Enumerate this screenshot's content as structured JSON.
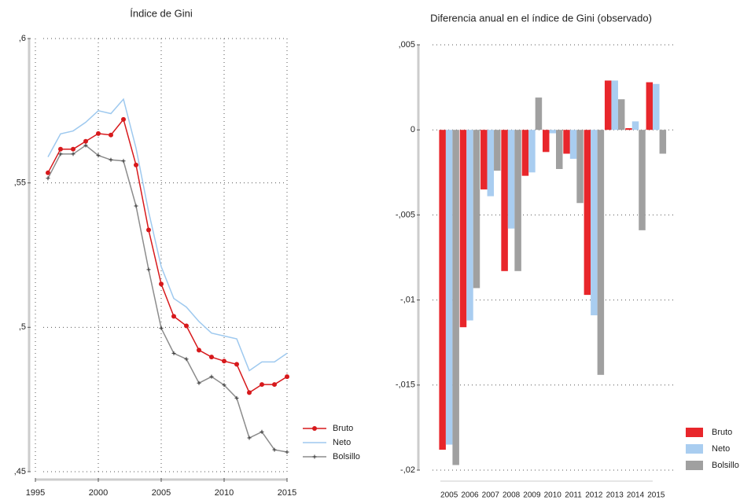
{
  "chart_data": [
    {
      "type": "line",
      "title": "Índice de Gini",
      "x": [
        1996,
        1997,
        1998,
        1999,
        2000,
        2001,
        2002,
        2003,
        2004,
        2005,
        2006,
        2007,
        2008,
        2009,
        2010,
        2011,
        2012,
        2013,
        2014,
        2015
      ],
      "series": [
        {
          "name": "Bruto",
          "color": "#d7191c",
          "marker": "circle",
          "values": [
            0.5535,
            0.5617,
            0.5617,
            0.5644,
            0.5671,
            0.5666,
            0.572,
            0.5562,
            0.5337,
            0.515,
            0.5038,
            0.5005,
            0.4921,
            0.4897,
            0.4883,
            0.4872,
            0.4774,
            0.4802,
            0.4802,
            0.4829
          ]
        },
        {
          "name": "Neto",
          "color": "#9ec9ef",
          "marker": "none",
          "values": [
            0.559,
            0.567,
            0.568,
            0.571,
            0.575,
            0.574,
            0.579,
            0.562,
            0.54,
            0.521,
            0.51,
            0.507,
            0.502,
            0.498,
            0.497,
            0.496,
            0.485,
            0.488,
            0.488,
            0.491
          ]
        },
        {
          "name": "Bolsillo",
          "color": "#8c8c8c",
          "marker": "plus",
          "values": [
            0.5516,
            0.56,
            0.56,
            0.563,
            0.5595,
            0.558,
            0.5576,
            0.542,
            0.52,
            0.4997,
            0.491,
            0.489,
            0.4807,
            0.4829,
            0.48,
            0.4755,
            0.4617,
            0.4638,
            0.4576,
            0.4568
          ]
        }
      ],
      "xlim": [
        1995,
        2015
      ],
      "xticks": [
        1995,
        2000,
        2005,
        2010,
        2015
      ],
      "ylim": [
        0.45,
        0.6
      ],
      "yticks": [
        {
          "value": 0.45,
          "label": ",45"
        },
        {
          "value": 0.5,
          "label": ",5"
        },
        {
          "value": 0.55,
          "label": ",55"
        },
        {
          "value": 0.6,
          "label": ",6"
        }
      ],
      "grid": true,
      "xgrid": true,
      "legend": "lower right"
    },
    {
      "type": "bar",
      "title": "Diferencia anual en el índice de Gini (observado)",
      "categories": [
        "2005",
        "2006",
        "2007",
        "2008",
        "2009",
        "2010",
        "2011",
        "2012",
        "2013",
        "2014",
        "2015"
      ],
      "series": [
        {
          "name": "Bruto",
          "color": "#e8262b",
          "values": [
            -0.0188,
            -0.0116,
            -0.0035,
            -0.0083,
            -0.0027,
            -0.0013,
            -0.0014,
            -0.0097,
            0.0029,
            0.0001,
            0.0028
          ]
        },
        {
          "name": "Neto",
          "color": "#a9cdf0",
          "values": [
            -0.0185,
            -0.0112,
            -0.0039,
            -0.0058,
            -0.0025,
            -0.0002,
            -0.0017,
            -0.0109,
            0.0029,
            0.0005,
            0.0027
          ]
        },
        {
          "name": "Bolsillo",
          "color": "#a0a0a0",
          "values": [
            -0.0197,
            -0.0093,
            -0.0024,
            -0.0083,
            0.0019,
            -0.0023,
            -0.0043,
            -0.0144,
            0.0018,
            -0.0059,
            -0.0014
          ]
        }
      ],
      "ylim": [
        -0.02,
        0.005
      ],
      "yticks": [
        {
          "value": -0.02,
          "label": "-,02"
        },
        {
          "value": -0.015,
          "label": "-,015"
        },
        {
          "value": -0.01,
          "label": "-,01"
        },
        {
          "value": -0.005,
          "label": "-,005"
        },
        0,
        {
          "value": 0.005,
          "label": ",005"
        }
      ],
      "grid": true,
      "xgrid": false,
      "legend": "lower right"
    }
  ]
}
